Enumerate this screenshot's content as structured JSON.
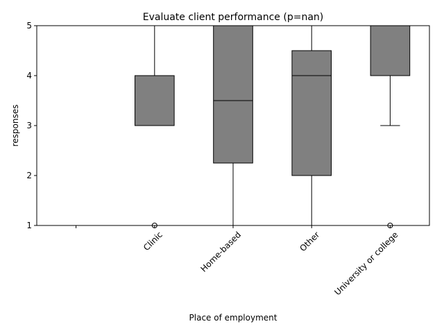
{
  "chart_data": {
    "type": "box",
    "title": "Evaluate client performance (p=nan)",
    "xlabel": "Place of employment",
    "ylabel": "responses",
    "ylim": [
      1,
      5
    ],
    "yticks": [
      "1",
      "2",
      "3",
      "4",
      "5"
    ],
    "grid": false,
    "categories": [
      "",
      "Clinic",
      "Home-based",
      "Other",
      "University or college"
    ],
    "boxes": [
      null,
      {
        "whisker_low": 3,
        "q1": 3,
        "median": 3,
        "q3": 4,
        "whisker_high": 5,
        "outliers": [
          1
        ]
      },
      {
        "whisker_low": 1,
        "q1": 2.25,
        "median": 3.5,
        "q3": 5,
        "whisker_high": 5,
        "outliers": []
      },
      {
        "whisker_low": 1,
        "q1": 2,
        "median": 4,
        "q3": 4.5,
        "whisker_high": 5,
        "outliers": []
      },
      {
        "whisker_low": 3,
        "q1": 4,
        "median": 5,
        "q3": 5,
        "whisker_high": 5,
        "outliers": [
          1
        ]
      }
    ],
    "colors": {
      "box_fill": "#808080",
      "stroke": "#000000"
    }
  }
}
